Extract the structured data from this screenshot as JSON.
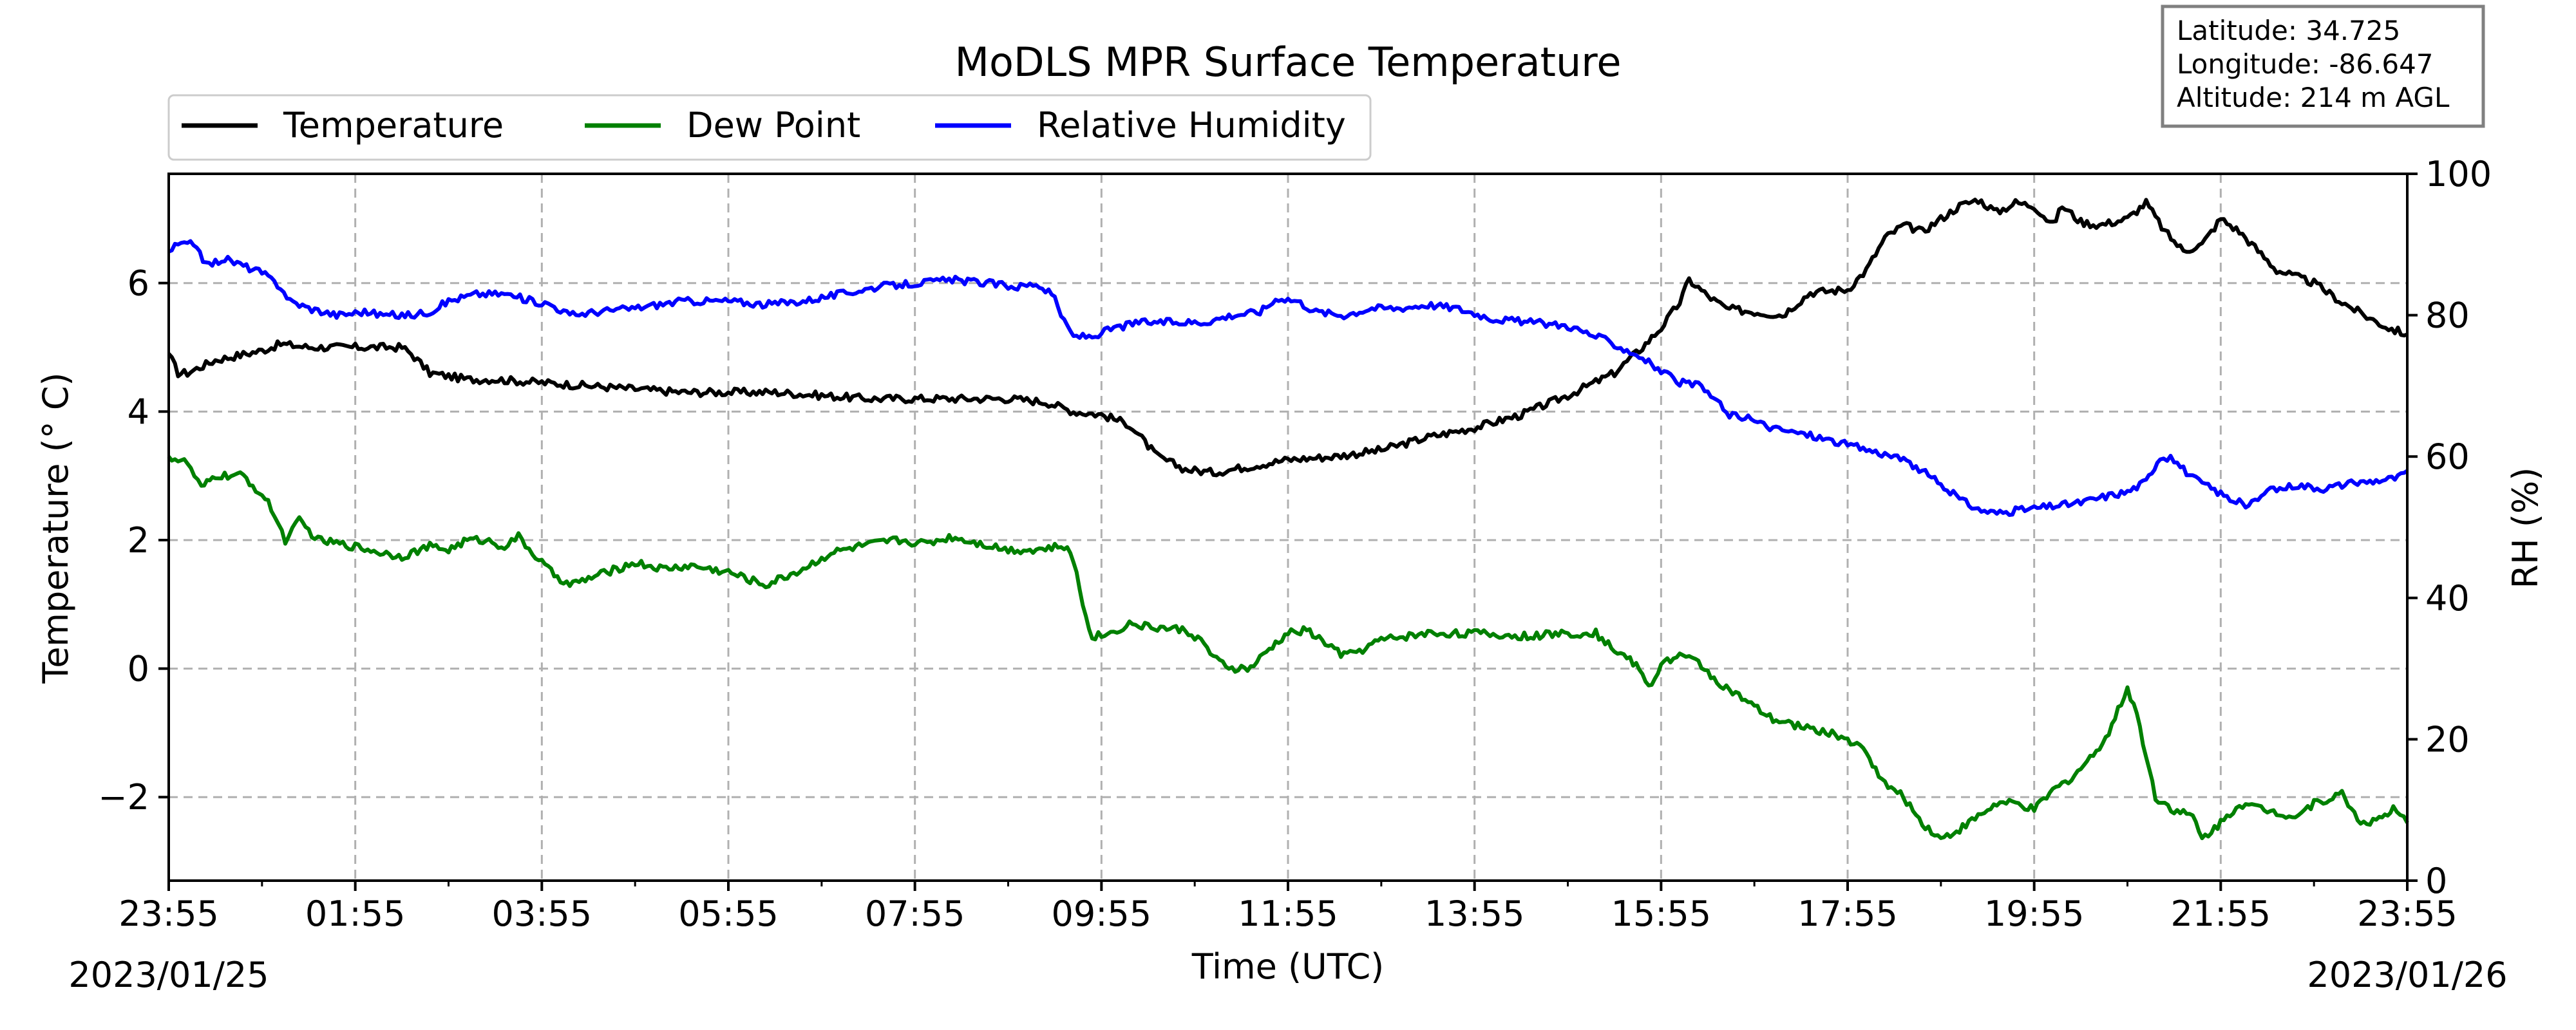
{
  "chart_data": {
    "type": "line",
    "title": "MoDLS MPR Surface Temperature",
    "xlabel": "Time (UTC)",
    "ylabel_left": "Temperature (° C)",
    "ylabel_right": "RH (%)",
    "x_unit": "hours after 2023/01/25 23:55 UTC",
    "xlim": [
      0,
      24
    ],
    "ylim_left": [
      -3.3,
      7.7
    ],
    "ylim_right": [
      0,
      100
    ],
    "x_ticks": [
      0,
      2,
      4,
      6,
      8,
      10,
      12,
      14,
      16,
      18,
      20,
      22,
      24
    ],
    "x_tick_labels": [
      "23:55",
      "01:55",
      "03:55",
      "05:55",
      "07:55",
      "09:55",
      "11:55",
      "13:55",
      "15:55",
      "17:55",
      "19:55",
      "21:55",
      "23:55"
    ],
    "start_date": "2023/01/25",
    "end_date": "2023/01/26",
    "y_ticks_left": [
      -2,
      0,
      2,
      4,
      6
    ],
    "y_tick_labels_left": [
      "−2",
      "0",
      "2",
      "4",
      "6"
    ],
    "y_ticks_right": [
      0,
      20,
      40,
      60,
      80,
      100
    ],
    "y_tick_labels_right": [
      "0",
      "20",
      "40",
      "60",
      "80",
      "100"
    ],
    "grid": true,
    "legend_placement": "top-left, above plot",
    "info_box": [
      "Latitude: 34.725",
      "Longitude: -86.647",
      "Altitude: 214 m AGL"
    ],
    "series": [
      {
        "name": "Temperature",
        "axis": "left",
        "color": "#000000",
        "points": [
          [
            0,
            4.9
          ],
          [
            0.1,
            4.6
          ],
          [
            0.2,
            4.6
          ],
          [
            0.5,
            4.8
          ],
          [
            1.0,
            4.95
          ],
          [
            1.2,
            5.05
          ],
          [
            1.5,
            5.0
          ],
          [
            2.0,
            5.0
          ],
          [
            2.5,
            5.0
          ],
          [
            2.6,
            4.9
          ],
          [
            2.8,
            4.6
          ],
          [
            3.2,
            4.5
          ],
          [
            3.5,
            4.5
          ],
          [
            4,
            4.45
          ],
          [
            4.5,
            4.4
          ],
          [
            5,
            4.35
          ],
          [
            5.5,
            4.3
          ],
          [
            6,
            4.3
          ],
          [
            6.5,
            4.3
          ],
          [
            7,
            4.25
          ],
          [
            7.5,
            4.2
          ],
          [
            8,
            4.2
          ],
          [
            8.5,
            4.2
          ],
          [
            9,
            4.2
          ],
          [
            9.4,
            4.15
          ],
          [
            9.7,
            4.0
          ],
          [
            10,
            3.95
          ],
          [
            10.3,
            3.8
          ],
          [
            10.6,
            3.3
          ],
          [
            10.9,
            3.1
          ],
          [
            11.2,
            3.05
          ],
          [
            11.6,
            3.15
          ],
          [
            12,
            3.25
          ],
          [
            12.5,
            3.3
          ],
          [
            13,
            3.4
          ],
          [
            13.5,
            3.6
          ],
          [
            14,
            3.75
          ],
          [
            14.5,
            3.95
          ],
          [
            15,
            4.25
          ],
          [
            15.5,
            4.6
          ],
          [
            15.8,
            5.0
          ],
          [
            16.0,
            5.3
          ],
          [
            16.2,
            5.7
          ],
          [
            16.3,
            6.05
          ],
          [
            16.5,
            5.8
          ],
          [
            16.7,
            5.6
          ],
          [
            17.0,
            5.55
          ],
          [
            17.3,
            5.5
          ],
          [
            17.6,
            5.85
          ],
          [
            18,
            5.9
          ],
          [
            18.2,
            6.2
          ],
          [
            18.4,
            6.7
          ],
          [
            18.6,
            6.9
          ],
          [
            18.8,
            6.8
          ],
          [
            19,
            7.0
          ],
          [
            19.2,
            7.2
          ],
          [
            19.4,
            7.3
          ],
          [
            19.6,
            7.1
          ],
          [
            19.8,
            7.25
          ],
          [
            20,
            7.2
          ],
          [
            20.2,
            6.9
          ],
          [
            20.3,
            7.2
          ],
          [
            20.5,
            6.95
          ],
          [
            20.7,
            6.9
          ],
          [
            21,
            7.0
          ],
          [
            21.2,
            7.25
          ],
          [
            21.4,
            6.8
          ],
          [
            21.6,
            6.5
          ],
          [
            21.8,
            6.6
          ],
          [
            22.0,
            7.0
          ],
          [
            22.2,
            6.8
          ],
          [
            22.4,
            6.5
          ],
          [
            22.6,
            6.2
          ],
          [
            22.8,
            6.1
          ],
          [
            23.0,
            6.0
          ],
          [
            23.3,
            5.7
          ],
          [
            23.6,
            5.45
          ],
          [
            23.8,
            5.3
          ],
          [
            24,
            5.2
          ]
        ]
      },
      {
        "name": "Dew Point",
        "axis": "left",
        "color": "#008000",
        "points": [
          [
            0,
            3.3
          ],
          [
            0.2,
            3.2
          ],
          [
            0.35,
            2.8
          ],
          [
            0.5,
            3.0
          ],
          [
            0.8,
            3.0
          ],
          [
            1.0,
            2.7
          ],
          [
            1.1,
            2.5
          ],
          [
            1.25,
            2.0
          ],
          [
            1.4,
            2.3
          ],
          [
            1.6,
            2.0
          ],
          [
            2.0,
            1.9
          ],
          [
            2.3,
            1.8
          ],
          [
            2.5,
            1.75
          ],
          [
            2.8,
            1.9
          ],
          [
            3.0,
            1.85
          ],
          [
            3.2,
            2.0
          ],
          [
            3.4,
            2.0
          ],
          [
            3.6,
            1.9
          ],
          [
            3.75,
            2.05
          ],
          [
            3.9,
            1.8
          ],
          [
            4.1,
            1.5
          ],
          [
            4.3,
            1.3
          ],
          [
            4.6,
            1.45
          ],
          [
            5.0,
            1.65
          ],
          [
            5.3,
            1.55
          ],
          [
            5.6,
            1.6
          ],
          [
            6.0,
            1.5
          ],
          [
            6.4,
            1.3
          ],
          [
            6.8,
            1.55
          ],
          [
            7.1,
            1.8
          ],
          [
            7.4,
            1.9
          ],
          [
            7.8,
            2.0
          ],
          [
            8.1,
            1.95
          ],
          [
            8.4,
            2.05
          ],
          [
            8.7,
            1.95
          ],
          [
            9.0,
            1.85
          ],
          [
            9.3,
            1.85
          ],
          [
            9.6,
            1.9
          ],
          [
            9.7,
            1.7
          ],
          [
            9.8,
            1.0
          ],
          [
            9.9,
            0.5
          ],
          [
            10.1,
            0.55
          ],
          [
            10.3,
            0.7
          ],
          [
            10.5,
            0.65
          ],
          [
            10.9,
            0.6
          ],
          [
            11.0,
            0.5
          ],
          [
            11.1,
            0.4
          ],
          [
            11.2,
            0.15
          ],
          [
            11.4,
            0.0
          ],
          [
            11.6,
            0.0
          ],
          [
            11.8,
            0.3
          ],
          [
            12.0,
            0.55
          ],
          [
            12.2,
            0.6
          ],
          [
            12.4,
            0.4
          ],
          [
            12.6,
            0.2
          ],
          [
            12.8,
            0.3
          ],
          [
            13.0,
            0.45
          ],
          [
            13.5,
            0.55
          ],
          [
            14,
            0.55
          ],
          [
            14.5,
            0.5
          ],
          [
            15,
            0.55
          ],
          [
            15.3,
            0.55
          ],
          [
            15.5,
            0.3
          ],
          [
            15.7,
            0.1
          ],
          [
            15.9,
            -0.3
          ],
          [
            16.0,
            0.1
          ],
          [
            16.2,
            0.2
          ],
          [
            16.4,
            0.1
          ],
          [
            16.6,
            -0.2
          ],
          [
            16.8,
            -0.4
          ],
          [
            17.0,
            -0.6
          ],
          [
            17.2,
            -0.8
          ],
          [
            17.5,
            -0.9
          ],
          [
            17.8,
            -1.0
          ],
          [
            18.0,
            -1.1
          ],
          [
            18.2,
            -1.3
          ],
          [
            18.4,
            -1.8
          ],
          [
            18.6,
            -2.0
          ],
          [
            18.8,
            -2.4
          ],
          [
            19.0,
            -2.65
          ],
          [
            19.2,
            -2.5
          ],
          [
            19.4,
            -2.3
          ],
          [
            19.6,
            -2.1
          ],
          [
            19.8,
            -2.1
          ],
          [
            20.0,
            -2.2
          ],
          [
            20.2,
            -1.9
          ],
          [
            20.4,
            -1.7
          ],
          [
            20.6,
            -1.4
          ],
          [
            20.8,
            -1.0
          ],
          [
            21.0,
            -0.3
          ],
          [
            21.1,
            -0.7
          ],
          [
            21.3,
            -2.0
          ],
          [
            21.5,
            -2.2
          ],
          [
            21.7,
            -2.3
          ],
          [
            21.8,
            -2.65
          ],
          [
            22.0,
            -2.4
          ],
          [
            22.2,
            -2.1
          ],
          [
            22.5,
            -2.2
          ],
          [
            22.8,
            -2.3
          ],
          [
            23.0,
            -2.1
          ],
          [
            23.3,
            -1.95
          ],
          [
            23.5,
            -2.4
          ],
          [
            23.7,
            -2.35
          ],
          [
            23.85,
            -2.2
          ],
          [
            24,
            -2.4
          ]
        ]
      },
      {
        "name": "Relative Humidity",
        "axis": "right",
        "color": "#0000ff",
        "points": [
          [
            0,
            89
          ],
          [
            0.1,
            90
          ],
          [
            0.3,
            90
          ],
          [
            0.4,
            87
          ],
          [
            0.6,
            88
          ],
          [
            0.8,
            87
          ],
          [
            1.0,
            86
          ],
          [
            1.2,
            84
          ],
          [
            1.3,
            82
          ],
          [
            1.5,
            81
          ],
          [
            1.8,
            80
          ],
          [
            2.1,
            80.5
          ],
          [
            2.3,
            80
          ],
          [
            2.6,
            80
          ],
          [
            2.8,
            80.5
          ],
          [
            3.0,
            82
          ],
          [
            3.3,
            83
          ],
          [
            3.6,
            83
          ],
          [
            3.9,
            82
          ],
          [
            4.1,
            81.5
          ],
          [
            4.3,
            80
          ],
          [
            4.6,
            80.5
          ],
          [
            5.0,
            81
          ],
          [
            5.5,
            82
          ],
          [
            6.0,
            82
          ],
          [
            6.4,
            81.5
          ],
          [
            6.8,
            82
          ],
          [
            7.2,
            83
          ],
          [
            7.6,
            84
          ],
          [
            8.0,
            84.5
          ],
          [
            8.4,
            85
          ],
          [
            8.8,
            84.5
          ],
          [
            9.1,
            84
          ],
          [
            9.3,
            84.5
          ],
          [
            9.5,
            82.5
          ],
          [
            9.6,
            79
          ],
          [
            9.7,
            77
          ],
          [
            9.9,
            77
          ],
          [
            10.1,
            78
          ],
          [
            10.4,
            79
          ],
          [
            10.8,
            79
          ],
          [
            11.1,
            79
          ],
          [
            11.4,
            80
          ],
          [
            11.7,
            80.5
          ],
          [
            11.9,
            82.5
          ],
          [
            12.1,
            82
          ],
          [
            12.3,
            80.5
          ],
          [
            12.6,
            80
          ],
          [
            12.9,
            81
          ],
          [
            13.2,
            81
          ],
          [
            13.5,
            81.5
          ],
          [
            13.8,
            81
          ],
          [
            14.2,
            79.5
          ],
          [
            14.6,
            79
          ],
          [
            15.0,
            78.5
          ],
          [
            15.4,
            76.5
          ],
          [
            15.8,
            74
          ],
          [
            16.0,
            72
          ],
          [
            16.2,
            70.5
          ],
          [
            16.4,
            70
          ],
          [
            16.6,
            68
          ],
          [
            16.7,
            66
          ],
          [
            16.9,
            65.5
          ],
          [
            17.2,
            64
          ],
          [
            17.6,
            63
          ],
          [
            17.9,
            62
          ],
          [
            18.2,
            61
          ],
          [
            18.5,
            60
          ],
          [
            18.8,
            58
          ],
          [
            19.0,
            56
          ],
          [
            19.2,
            54
          ],
          [
            19.4,
            52.5
          ],
          [
            19.6,
            52
          ],
          [
            19.9,
            52.5
          ],
          [
            20.2,
            53
          ],
          [
            20.5,
            53.5
          ],
          [
            20.8,
            54.5
          ],
          [
            21.0,
            55
          ],
          [
            21.2,
            56.5
          ],
          [
            21.35,
            60
          ],
          [
            21.5,
            59.5
          ],
          [
            21.7,
            57
          ],
          [
            21.9,
            55.5
          ],
          [
            22.1,
            54
          ],
          [
            22.3,
            53
          ],
          [
            22.5,
            55
          ],
          [
            22.8,
            56
          ],
          [
            23.1,
            55.5
          ],
          [
            23.3,
            56
          ],
          [
            23.6,
            56.5
          ],
          [
            23.9,
            57
          ],
          [
            24,
            58
          ]
        ]
      }
    ]
  }
}
